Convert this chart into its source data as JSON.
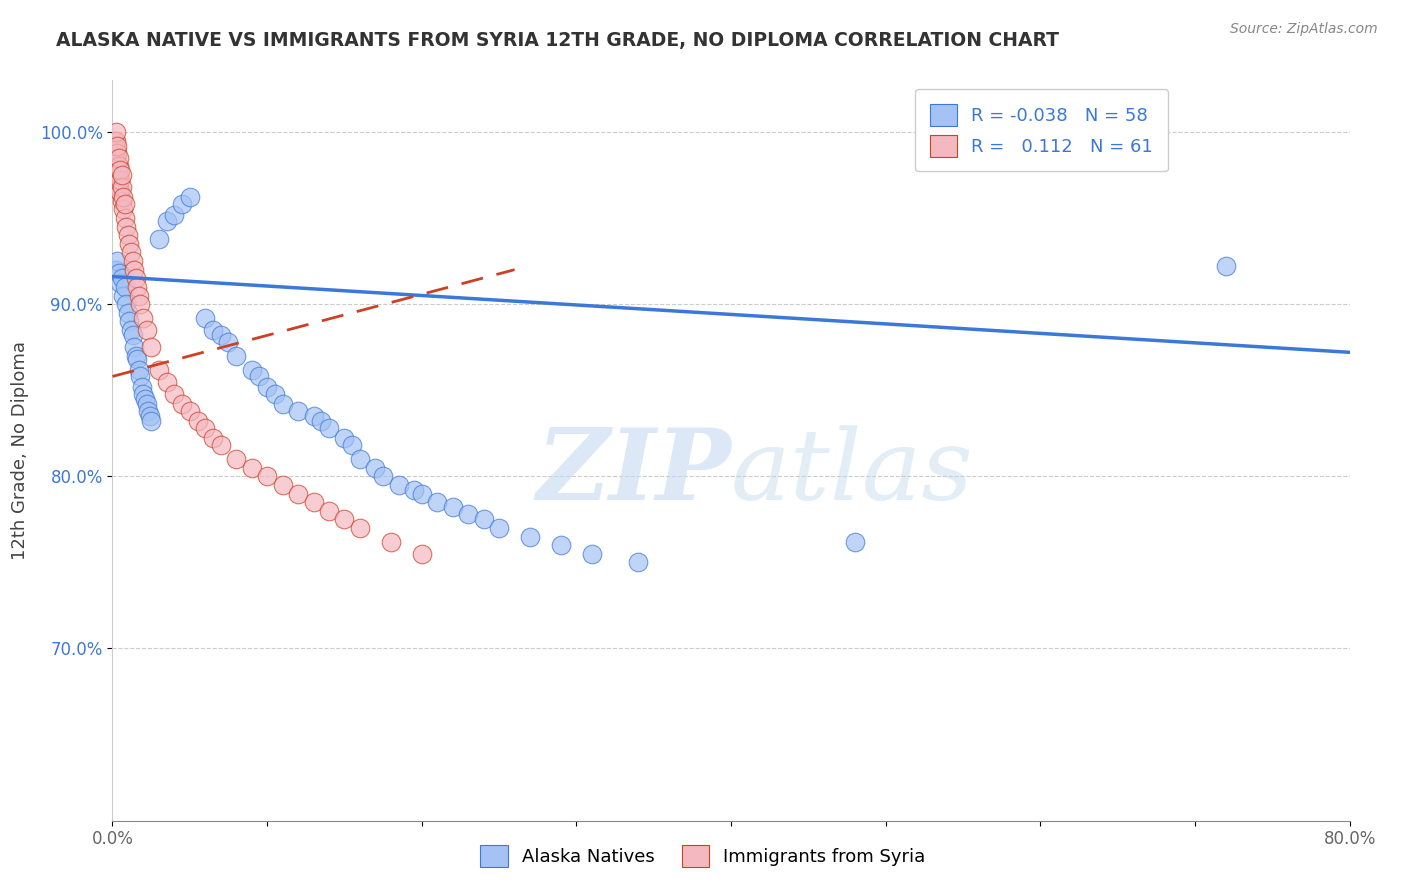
{
  "title": "ALASKA NATIVE VS IMMIGRANTS FROM SYRIA 12TH GRADE, NO DIPLOMA CORRELATION CHART",
  "source": "Source: ZipAtlas.com",
  "ylabel": "12th Grade, No Diploma",
  "xmin": 0.0,
  "xmax": 0.8,
  "ymin": 0.6,
  "ymax": 1.03,
  "x_tick_positions": [
    0.0,
    0.1,
    0.2,
    0.3,
    0.4,
    0.5,
    0.6,
    0.7,
    0.8
  ],
  "x_tick_labels": [
    "0.0%",
    "",
    "",
    "",
    "",
    "",
    "",
    "",
    "80.0%"
  ],
  "y_tick_positions": [
    0.7,
    0.8,
    0.9,
    1.0
  ],
  "y_tick_labels": [
    "70.0%",
    "80.0%",
    "90.0%",
    "100.0%"
  ],
  "blue_color": "#a4c2f4",
  "pink_color": "#f4b8c1",
  "blue_line_color": "#3c78d8",
  "pink_line_color": "#cc4125",
  "watermark_zip": "ZIP",
  "watermark_atlas": "atlas",
  "alaska_native_x": [
    0.002,
    0.003,
    0.004,
    0.005,
    0.006,
    0.007,
    0.008,
    0.009,
    0.01,
    0.011,
    0.012,
    0.013,
    0.014,
    0.015,
    0.016,
    0.017,
    0.018,
    0.019,
    0.02,
    0.021,
    0.022,
    0.023,
    0.024,
    0.025,
    0.03,
    0.035,
    0.04,
    0.045,
    0.05,
    0.06,
    0.065,
    0.07,
    0.075,
    0.08,
    0.09,
    0.095,
    0.1,
    0.105,
    0.11,
    0.12,
    0.13,
    0.135,
    0.14,
    0.15,
    0.155,
    0.16,
    0.17,
    0.175,
    0.185,
    0.195,
    0.2,
    0.21,
    0.22,
    0.23,
    0.24,
    0.25,
    0.27,
    0.29,
    0.31,
    0.34,
    0.48,
    0.72
  ],
  "alaska_native_y": [
    0.92,
    0.925,
    0.918,
    0.912,
    0.915,
    0.905,
    0.91,
    0.9,
    0.895,
    0.89,
    0.885,
    0.882,
    0.875,
    0.87,
    0.868,
    0.862,
    0.858,
    0.852,
    0.848,
    0.845,
    0.842,
    0.838,
    0.835,
    0.832,
    0.938,
    0.948,
    0.952,
    0.958,
    0.962,
    0.892,
    0.885,
    0.882,
    0.878,
    0.87,
    0.862,
    0.858,
    0.852,
    0.848,
    0.842,
    0.838,
    0.835,
    0.832,
    0.828,
    0.822,
    0.818,
    0.81,
    0.805,
    0.8,
    0.795,
    0.792,
    0.79,
    0.785,
    0.782,
    0.778,
    0.775,
    0.77,
    0.765,
    0.76,
    0.755,
    0.75,
    0.762,
    0.922
  ],
  "syria_x": [
    0.001,
    0.001,
    0.001,
    0.002,
    0.002,
    0.002,
    0.002,
    0.002,
    0.003,
    0.003,
    0.003,
    0.003,
    0.003,
    0.004,
    0.004,
    0.004,
    0.004,
    0.005,
    0.005,
    0.005,
    0.006,
    0.006,
    0.006,
    0.007,
    0.007,
    0.008,
    0.008,
    0.009,
    0.01,
    0.011,
    0.012,
    0.013,
    0.014,
    0.015,
    0.016,
    0.017,
    0.018,
    0.02,
    0.022,
    0.025,
    0.03,
    0.035,
    0.04,
    0.045,
    0.05,
    0.055,
    0.06,
    0.065,
    0.07,
    0.08,
    0.09,
    0.1,
    0.11,
    0.12,
    0.13,
    0.14,
    0.15,
    0.16,
    0.18,
    0.2
  ],
  "syria_y": [
    0.982,
    0.988,
    0.995,
    0.978,
    0.985,
    0.99,
    0.995,
    1.0,
    0.972,
    0.978,
    0.982,
    0.988,
    0.992,
    0.968,
    0.975,
    0.98,
    0.985,
    0.965,
    0.972,
    0.978,
    0.96,
    0.968,
    0.975,
    0.955,
    0.962,
    0.95,
    0.958,
    0.945,
    0.94,
    0.935,
    0.93,
    0.925,
    0.92,
    0.915,
    0.91,
    0.905,
    0.9,
    0.892,
    0.885,
    0.875,
    0.862,
    0.855,
    0.848,
    0.842,
    0.838,
    0.832,
    0.828,
    0.822,
    0.818,
    0.81,
    0.805,
    0.8,
    0.795,
    0.79,
    0.785,
    0.78,
    0.775,
    0.77,
    0.762,
    0.755
  ],
  "blue_line_x": [
    0.0,
    0.8
  ],
  "blue_line_y": [
    0.916,
    0.872
  ],
  "pink_line_x": [
    0.0,
    0.26
  ],
  "pink_line_y": [
    0.858,
    0.92
  ]
}
